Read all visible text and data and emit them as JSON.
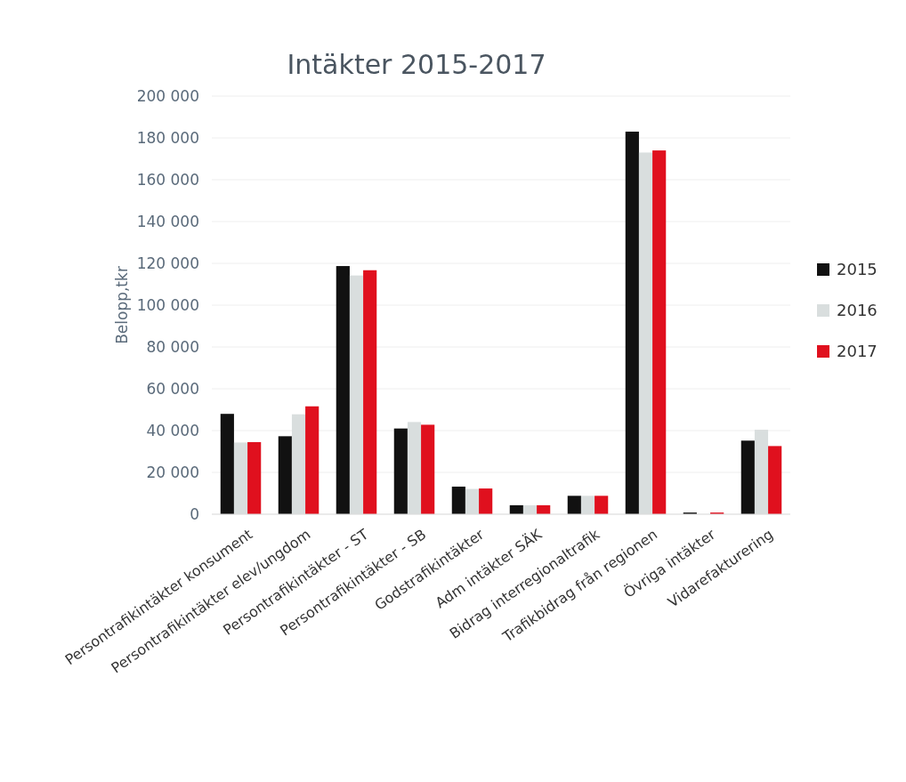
{
  "chart_data": {
    "type": "bar",
    "title": "Intäkter 2015-2017",
    "ylabel": "Belopp,tkr",
    "categories": [
      "Persontrafikintäkter konsument",
      "Persontrafikintäkter elev/ungdom",
      "Persontrafikintäkter - ST",
      "Persontrafikintäkter - SB",
      "Godstrafikintäkter",
      "Adm intäkter SÄK",
      "Bidrag interregionaltrafik",
      "Trafikbidrag från regionen",
      "Övriga intäkter",
      "Vidarefakturering"
    ],
    "series": [
      {
        "name": "2015",
        "color": "#111111",
        "values": [
          48000,
          37300,
          118700,
          41000,
          13200,
          4300,
          8800,
          183000,
          800,
          35200
        ]
      },
      {
        "name": "2016",
        "color": "#d9dede",
        "values": [
          34300,
          47800,
          114200,
          44100,
          12100,
          4300,
          8800,
          173000,
          null,
          40400
        ]
      },
      {
        "name": "2017",
        "color": "#e0101e",
        "values": [
          34500,
          51600,
          116700,
          42800,
          12300,
          4300,
          8800,
          174000,
          800,
          32600
        ]
      }
    ],
    "ylim": [
      0,
      200000
    ],
    "yticks": [
      {
        "value": 0,
        "label": "0"
      },
      {
        "value": 20000,
        "label": "20 000"
      },
      {
        "value": 40000,
        "label": "40 000"
      },
      {
        "value": 60000,
        "label": "60 000"
      },
      {
        "value": 80000,
        "label": "80 000"
      },
      {
        "value": 100000,
        "label": "100 000"
      },
      {
        "value": 120000,
        "label": "120 000"
      },
      {
        "value": 140000,
        "label": "140 000"
      },
      {
        "value": 160000,
        "label": "160 000"
      },
      {
        "value": 180000,
        "label": "180 000"
      },
      {
        "value": 200000,
        "label": "200 000"
      }
    ],
    "grid": "y",
    "legend": "right"
  }
}
